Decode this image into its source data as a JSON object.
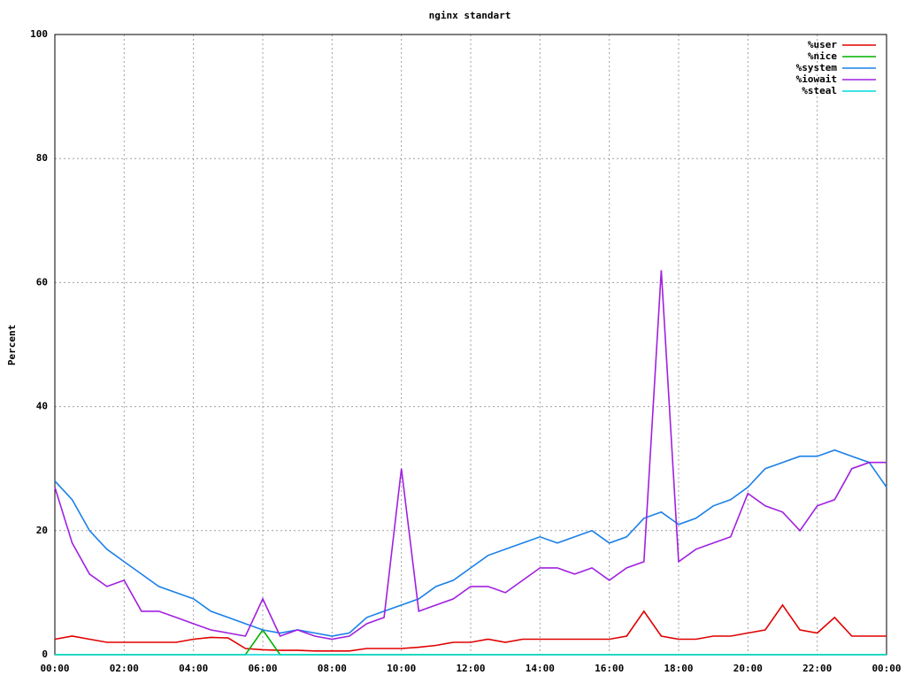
{
  "chart_data": {
    "type": "line",
    "title": "nginx standart",
    "y_label": "Percent",
    "x": [
      0,
      0.5,
      1,
      1.5,
      2,
      2.5,
      3,
      3.5,
      4,
      4.5,
      5,
      5.5,
      6,
      6.5,
      7,
      7.5,
      8,
      8.5,
      9,
      9.5,
      10,
      10.5,
      11,
      11.5,
      12,
      12.5,
      13,
      13.5,
      14,
      14.5,
      15,
      15.5,
      16,
      16.5,
      17,
      17.5,
      18,
      18.5,
      19,
      19.5,
      20,
      20.5,
      21,
      21.5,
      22,
      22.5,
      23,
      23.5,
      24
    ],
    "series": [
      {
        "name": "%user",
        "color": "#e00000",
        "values": [
          2.5,
          3,
          2.5,
          2,
          2,
          2,
          2,
          2,
          2.5,
          2.8,
          2.7,
          1,
          0.8,
          0.7,
          0.7,
          0.6,
          0.6,
          0.6,
          1,
          1,
          1,
          1.2,
          1.5,
          2,
          2,
          2.5,
          2,
          2.5,
          2.5,
          2.5,
          2.5,
          2.5,
          2.5,
          3,
          7,
          3,
          2.5,
          2.5,
          3,
          3,
          3.5,
          4,
          8,
          4,
          3.5,
          6,
          3,
          3,
          3
        ]
      },
      {
        "name": "%nice",
        "color": "#00b000",
        "values": [
          0,
          0,
          0,
          0,
          0,
          0,
          0,
          0,
          0,
          0,
          0,
          0,
          4,
          0,
          0,
          0,
          0,
          0,
          0,
          0,
          0,
          0,
          0,
          0,
          0,
          0,
          0,
          0,
          0,
          0,
          0,
          0,
          0,
          0,
          0,
          0,
          0,
          0,
          0,
          0,
          0,
          0,
          0,
          0,
          0,
          0,
          0,
          0,
          0
        ]
      },
      {
        "name": "%system",
        "color": "#1a80e8",
        "values": [
          28,
          25,
          20,
          17,
          15,
          13,
          11,
          10,
          9,
          7,
          6,
          5,
          4,
          3.5,
          4,
          3.5,
          3,
          3.5,
          6,
          7,
          8,
          9,
          11,
          12,
          14,
          16,
          17,
          18,
          19,
          18,
          19,
          20,
          18,
          19,
          22,
          23,
          21,
          22,
          24,
          25,
          27,
          30,
          31,
          32,
          32,
          33,
          32,
          31,
          27
        ]
      },
      {
        "name": "%iowait",
        "color": "#a020e0",
        "values": [
          27,
          18,
          13,
          11,
          12,
          7,
          7,
          6,
          5,
          4,
          3.5,
          3,
          9,
          3,
          4,
          3,
          2.5,
          3,
          5,
          6,
          30,
          7,
          8,
          9,
          11,
          11,
          10,
          12,
          14,
          14,
          13,
          14,
          12,
          14,
          15,
          62,
          15,
          17,
          18,
          19,
          26,
          24,
          23,
          20,
          24,
          25,
          30,
          31,
          31
        ]
      },
      {
        "name": "%steal",
        "color": "#00d8d8",
        "values": [
          0,
          0,
          0,
          0,
          0,
          0,
          0,
          0,
          0,
          0,
          0,
          0,
          0,
          0,
          0,
          0,
          0,
          0,
          0,
          0,
          0,
          0,
          0,
          0,
          0,
          0,
          0,
          0,
          0,
          0,
          0,
          0,
          0,
          0,
          0,
          0,
          0,
          0,
          0,
          0,
          0,
          0,
          0,
          0,
          0,
          0,
          0,
          0,
          0
        ]
      }
    ],
    "xlim": [
      0,
      24
    ],
    "xticks": [
      {
        "value": 0,
        "label": "00:00"
      },
      {
        "value": 2,
        "label": "02:00"
      },
      {
        "value": 4,
        "label": "04:00"
      },
      {
        "value": 6,
        "label": "06:00"
      },
      {
        "value": 8,
        "label": "08:00"
      },
      {
        "value": 10,
        "label": "10:00"
      },
      {
        "value": 12,
        "label": "12:00"
      },
      {
        "value": 14,
        "label": "14:00"
      },
      {
        "value": 16,
        "label": "16:00"
      },
      {
        "value": 18,
        "label": "18:00"
      },
      {
        "value": 20,
        "label": "20:00"
      },
      {
        "value": 22,
        "label": "22:00"
      },
      {
        "value": 24,
        "label": "00:00"
      }
    ],
    "ylim": [
      0,
      100
    ],
    "yticks": [
      0,
      20,
      40,
      60,
      80,
      100
    ],
    "grid": true,
    "legend": "top-right"
  }
}
